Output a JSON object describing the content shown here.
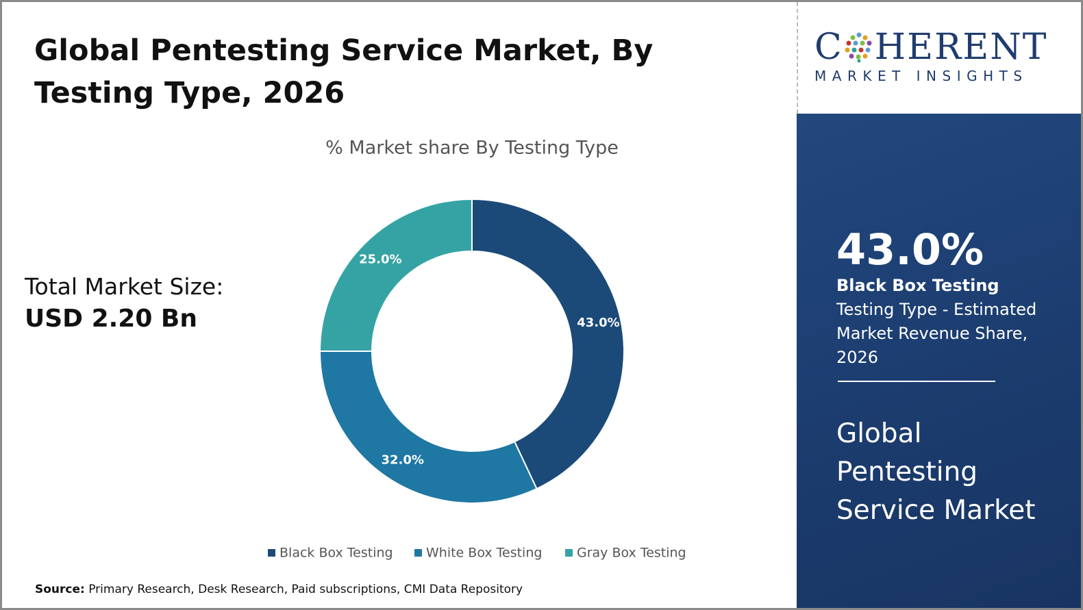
{
  "title": "Global Pentesting Service Market, By Testing Type, 2026",
  "total_label": "Total Market Size:",
  "total_value": "USD 2.20 Bn",
  "source_label": "Source:",
  "source_text": "Primary Research, Desk Research, Paid subscriptions, CMI Data Repository",
  "logo": {
    "name_start": "C",
    "name_end": "HERENT",
    "tagline": "MARKET INSIGHTS"
  },
  "sidebar": {
    "highlight": "43.0%",
    "highlight_segment": "Black Box Testing",
    "highlight_text": "Testing Type - Estimated Market Revenue Share, 2026",
    "market_title": "Global Pentesting Service Market"
  },
  "chart_data": {
    "type": "pie",
    "title": "% Market share By Testing Type",
    "categories": [
      "Black Box Testing",
      "White Box Testing",
      "Gray Box Testing"
    ],
    "values": [
      43,
      32,
      25
    ],
    "value_labels": [
      "43.0%",
      "32.0%",
      "25.0%"
    ],
    "colors": [
      "#1b4a78",
      "#1f77a4",
      "#35a3a3"
    ],
    "donut": true
  }
}
